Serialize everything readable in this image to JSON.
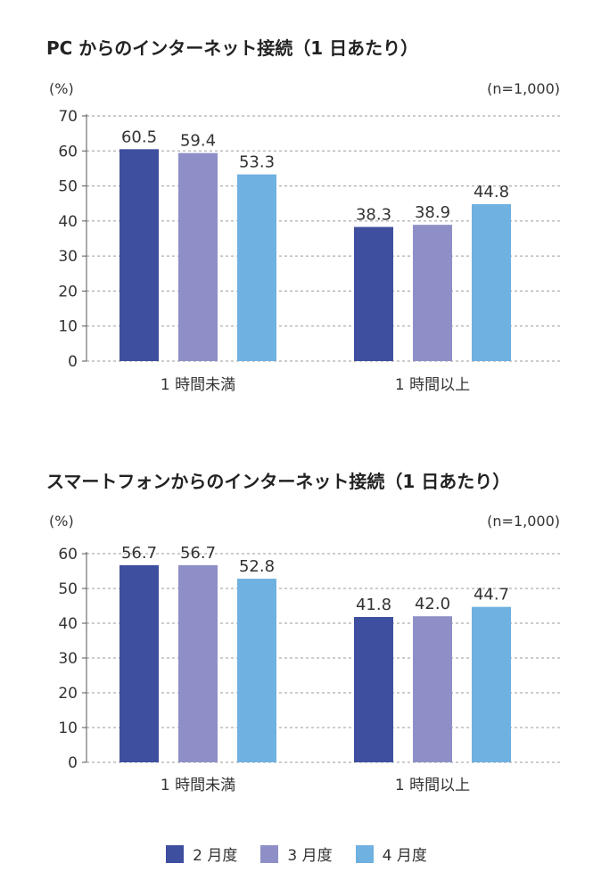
{
  "colors": {
    "series": [
      "#3f4f9f",
      "#8f8fc7",
      "#6fb1e0"
    ],
    "grid": "#9a9a9a",
    "axis": "#555555",
    "text": "#333333"
  },
  "chart_data": [
    {
      "type": "bar",
      "title": "PC からのインターネット接続（1 日あたり）",
      "ylabel": "(%)",
      "note": "(n=1,000)",
      "categories": [
        "1 時間未満",
        "1 時間以上"
      ],
      "ylim": [
        0,
        70
      ],
      "yticks": [
        0,
        10,
        20,
        30,
        40,
        50,
        60,
        70
      ],
      "grid": true,
      "series": [
        {
          "name": "2 月度",
          "values": [
            60.5,
            38.3
          ]
        },
        {
          "name": "3 月度",
          "values": [
            59.4,
            38.9
          ]
        },
        {
          "name": "4 月度",
          "values": [
            53.3,
            44.8
          ]
        }
      ]
    },
    {
      "type": "bar",
      "title": "スマートフォンからのインターネット接続（1 日あたり）",
      "ylabel": "(%)",
      "note": "(n=1,000)",
      "categories": [
        "1 時間未満",
        "1 時間以上"
      ],
      "ylim": [
        0,
        60
      ],
      "yticks": [
        0,
        10,
        20,
        30,
        40,
        50,
        60
      ],
      "grid": true,
      "series": [
        {
          "name": "2 月度",
          "values": [
            56.7,
            41.8
          ]
        },
        {
          "name": "3 月度",
          "values": [
            56.7,
            42.0
          ]
        },
        {
          "name": "4 月度",
          "values": [
            52.8,
            44.7
          ]
        }
      ]
    }
  ],
  "legend": {
    "placement": "bottom-center",
    "items": [
      {
        "label": "2 月度"
      },
      {
        "label": "3 月度"
      },
      {
        "label": "4 月度"
      }
    ]
  }
}
